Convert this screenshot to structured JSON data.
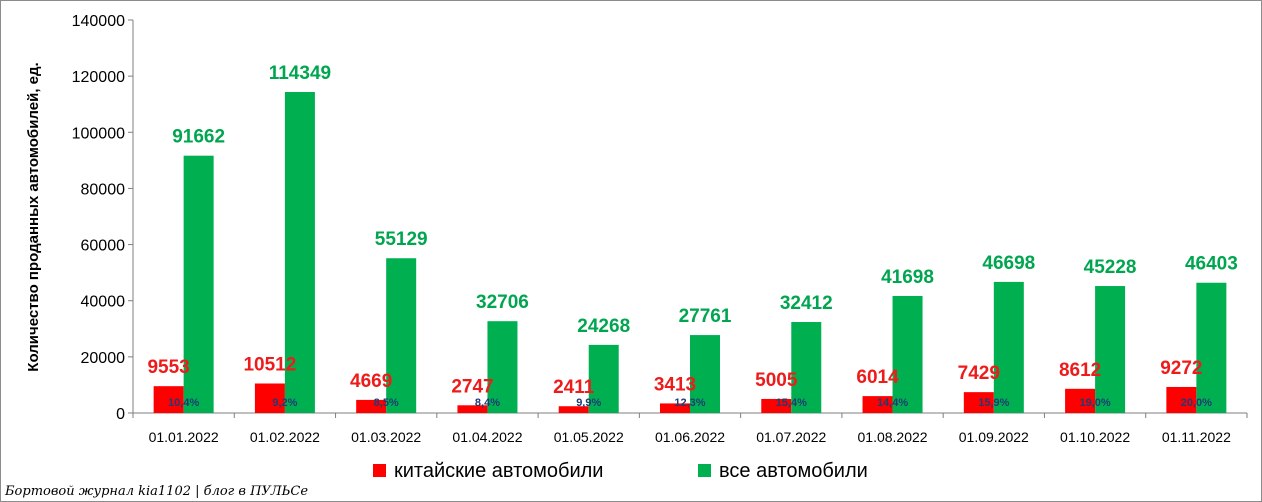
{
  "chart_data": {
    "type": "bar",
    "ylabel": "Количество проданных автомобилей, ед.",
    "ylim": [
      0,
      140000
    ],
    "yticks": [
      "0",
      "20000",
      "40000",
      "60000",
      "80000",
      "100000",
      "120000",
      "140000"
    ],
    "categories": [
      "01.01.2022",
      "01.02.2022",
      "01.03.2022",
      "01.04.2022",
      "01.05.2022",
      "01.06.2022",
      "01.07.2022",
      "01.08.2022",
      "01.09.2022",
      "01.10.2022",
      "01.11.2022"
    ],
    "series": [
      {
        "name": "китайские автомобили",
        "color": "#ff0000",
        "values": [
          9553,
          10512,
          4669,
          2747,
          2411,
          3413,
          5005,
          6014,
          7429,
          8612,
          9272
        ]
      },
      {
        "name": "все автомобили",
        "color": "#00b050",
        "values": [
          91662,
          114349,
          55129,
          32706,
          24268,
          27761,
          32412,
          41698,
          46698,
          45228,
          46403
        ]
      }
    ],
    "share_labels": [
      "10,4%",
      "9,2%",
      "8,5%",
      "8,4%",
      "9,9%",
      "12,3%",
      "15,4%",
      "14,4%",
      "15,9%",
      "19,0%",
      "20,0%"
    ],
    "legend_position": "bottom",
    "grid": false
  },
  "credit": "Бортовой журнал kia1102 | блог в ПУЛЬСе"
}
